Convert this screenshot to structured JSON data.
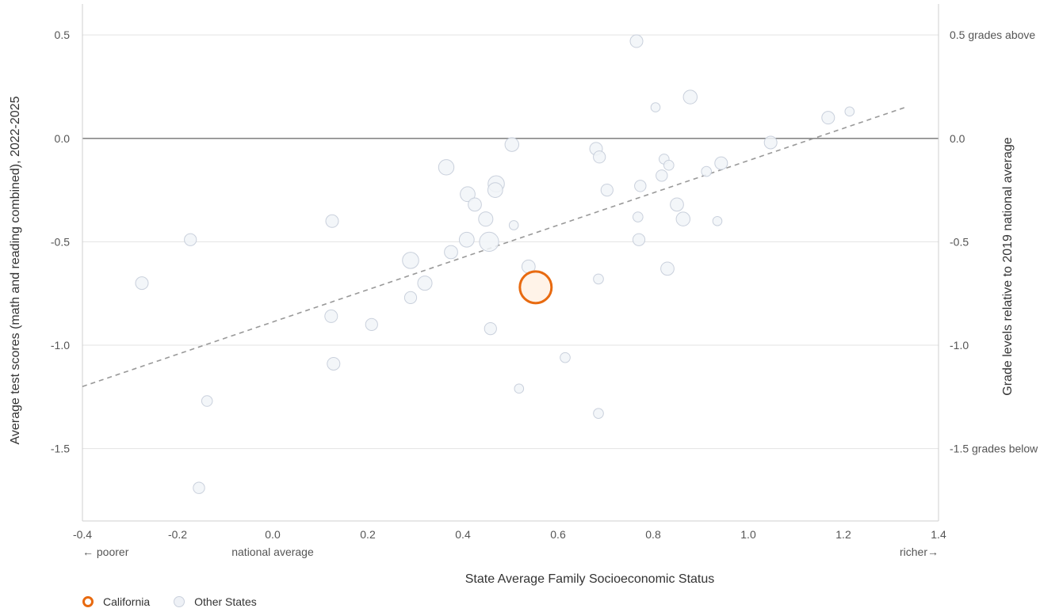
{
  "chart_data": {
    "type": "scatter",
    "xlabel": "State Average Family Socioeconomic Status",
    "ylabel_left": "Average test scores (math and reading combined), 2022-2025",
    "ylabel_right": "Grade levels relative to 2019 national average",
    "xlim": [
      -0.4,
      1.4
    ],
    "ylim": [
      -1.85,
      0.65
    ],
    "x_ticks": [
      "-0.4",
      "-0.2",
      "0.0",
      "0.2",
      "0.4",
      "0.6",
      "0.8",
      "1.0",
      "1.2",
      "1.4"
    ],
    "y_ticks_left": [
      "0.5",
      "0.0",
      "-0.5",
      "-1.0",
      "-1.5"
    ],
    "y_ticks_right": [
      "0.5 grades above",
      "0.0",
      "-0.5",
      "-1.0",
      "-1.5 grades below"
    ],
    "x_annotations": {
      "poorer": "← poorer",
      "national": "national average",
      "richer": "richer→"
    },
    "zero_line": 0.0,
    "trend_line": {
      "x": [
        -0.4,
        1.33
      ],
      "y": [
        -1.2,
        0.15
      ]
    },
    "grid": true,
    "legend_position": "bottom-left",
    "colors": {
      "california": "#e86a10",
      "california_fill": "#fff3e8",
      "other": "#c9d0dc",
      "other_fill": "#f1f4f8",
      "grid": "#e3e3e3",
      "zero": "#888888",
      "trend": "#999999"
    },
    "series": [
      {
        "name": "California",
        "points": [
          [
            0.553,
            -0.72,
            3.0
          ]
        ]
      },
      {
        "name": "Other States",
        "points": [
          [
            0.765,
            0.47,
            1.0
          ],
          [
            0.878,
            0.2,
            1.2
          ],
          [
            0.805,
            0.15,
            0.5
          ],
          [
            1.168,
            0.1,
            1.0
          ],
          [
            1.213,
            0.13,
            0.5
          ],
          [
            0.503,
            -0.03,
            1.2
          ],
          [
            0.68,
            -0.05,
            1.0
          ],
          [
            0.687,
            -0.09,
            0.9
          ],
          [
            1.047,
            -0.02,
            1.0
          ],
          [
            0.365,
            -0.14,
            1.5
          ],
          [
            0.47,
            -0.22,
            1.7
          ],
          [
            0.468,
            -0.25,
            1.4
          ],
          [
            0.41,
            -0.27,
            1.4
          ],
          [
            0.425,
            -0.32,
            1.1
          ],
          [
            0.703,
            -0.25,
            0.9
          ],
          [
            0.773,
            -0.23,
            0.8
          ],
          [
            0.818,
            -0.18,
            0.8
          ],
          [
            0.823,
            -0.1,
            0.6
          ],
          [
            0.833,
            -0.13,
            0.6
          ],
          [
            0.912,
            -0.16,
            0.6
          ],
          [
            0.943,
            -0.12,
            1.0
          ],
          [
            0.85,
            -0.32,
            1.1
          ],
          [
            0.863,
            -0.39,
            1.2
          ],
          [
            0.935,
            -0.4,
            0.5
          ],
          [
            0.768,
            -0.38,
            0.6
          ],
          [
            0.77,
            -0.49,
            0.9
          ],
          [
            0.455,
            -0.5,
            2.4
          ],
          [
            0.408,
            -0.49,
            1.4
          ],
          [
            0.448,
            -0.39,
            1.3
          ],
          [
            0.507,
            -0.42,
            0.5
          ],
          [
            0.375,
            -0.55,
            1.1
          ],
          [
            0.29,
            -0.59,
            1.7
          ],
          [
            0.32,
            -0.7,
            1.3
          ],
          [
            0.538,
            -0.62,
            1.1
          ],
          [
            0.83,
            -0.63,
            1.1
          ],
          [
            0.685,
            -0.68,
            0.6
          ],
          [
            0.29,
            -0.77,
            0.9
          ],
          [
            -0.275,
            -0.7,
            1.0
          ],
          [
            -0.173,
            -0.49,
            0.9
          ],
          [
            0.125,
            -0.4,
            1.0
          ],
          [
            0.123,
            -0.86,
            1.0
          ],
          [
            0.208,
            -0.9,
            0.9
          ],
          [
            0.458,
            -0.92,
            0.9
          ],
          [
            0.128,
            -1.09,
            1.0
          ],
          [
            0.615,
            -1.06,
            0.6
          ],
          [
            -0.138,
            -1.27,
            0.7
          ],
          [
            0.518,
            -1.21,
            0.5
          ],
          [
            0.685,
            -1.33,
            0.6
          ],
          [
            -0.155,
            -1.69,
            0.8
          ]
        ]
      }
    ]
  },
  "legend": {
    "california": "California",
    "other": "Other States"
  }
}
